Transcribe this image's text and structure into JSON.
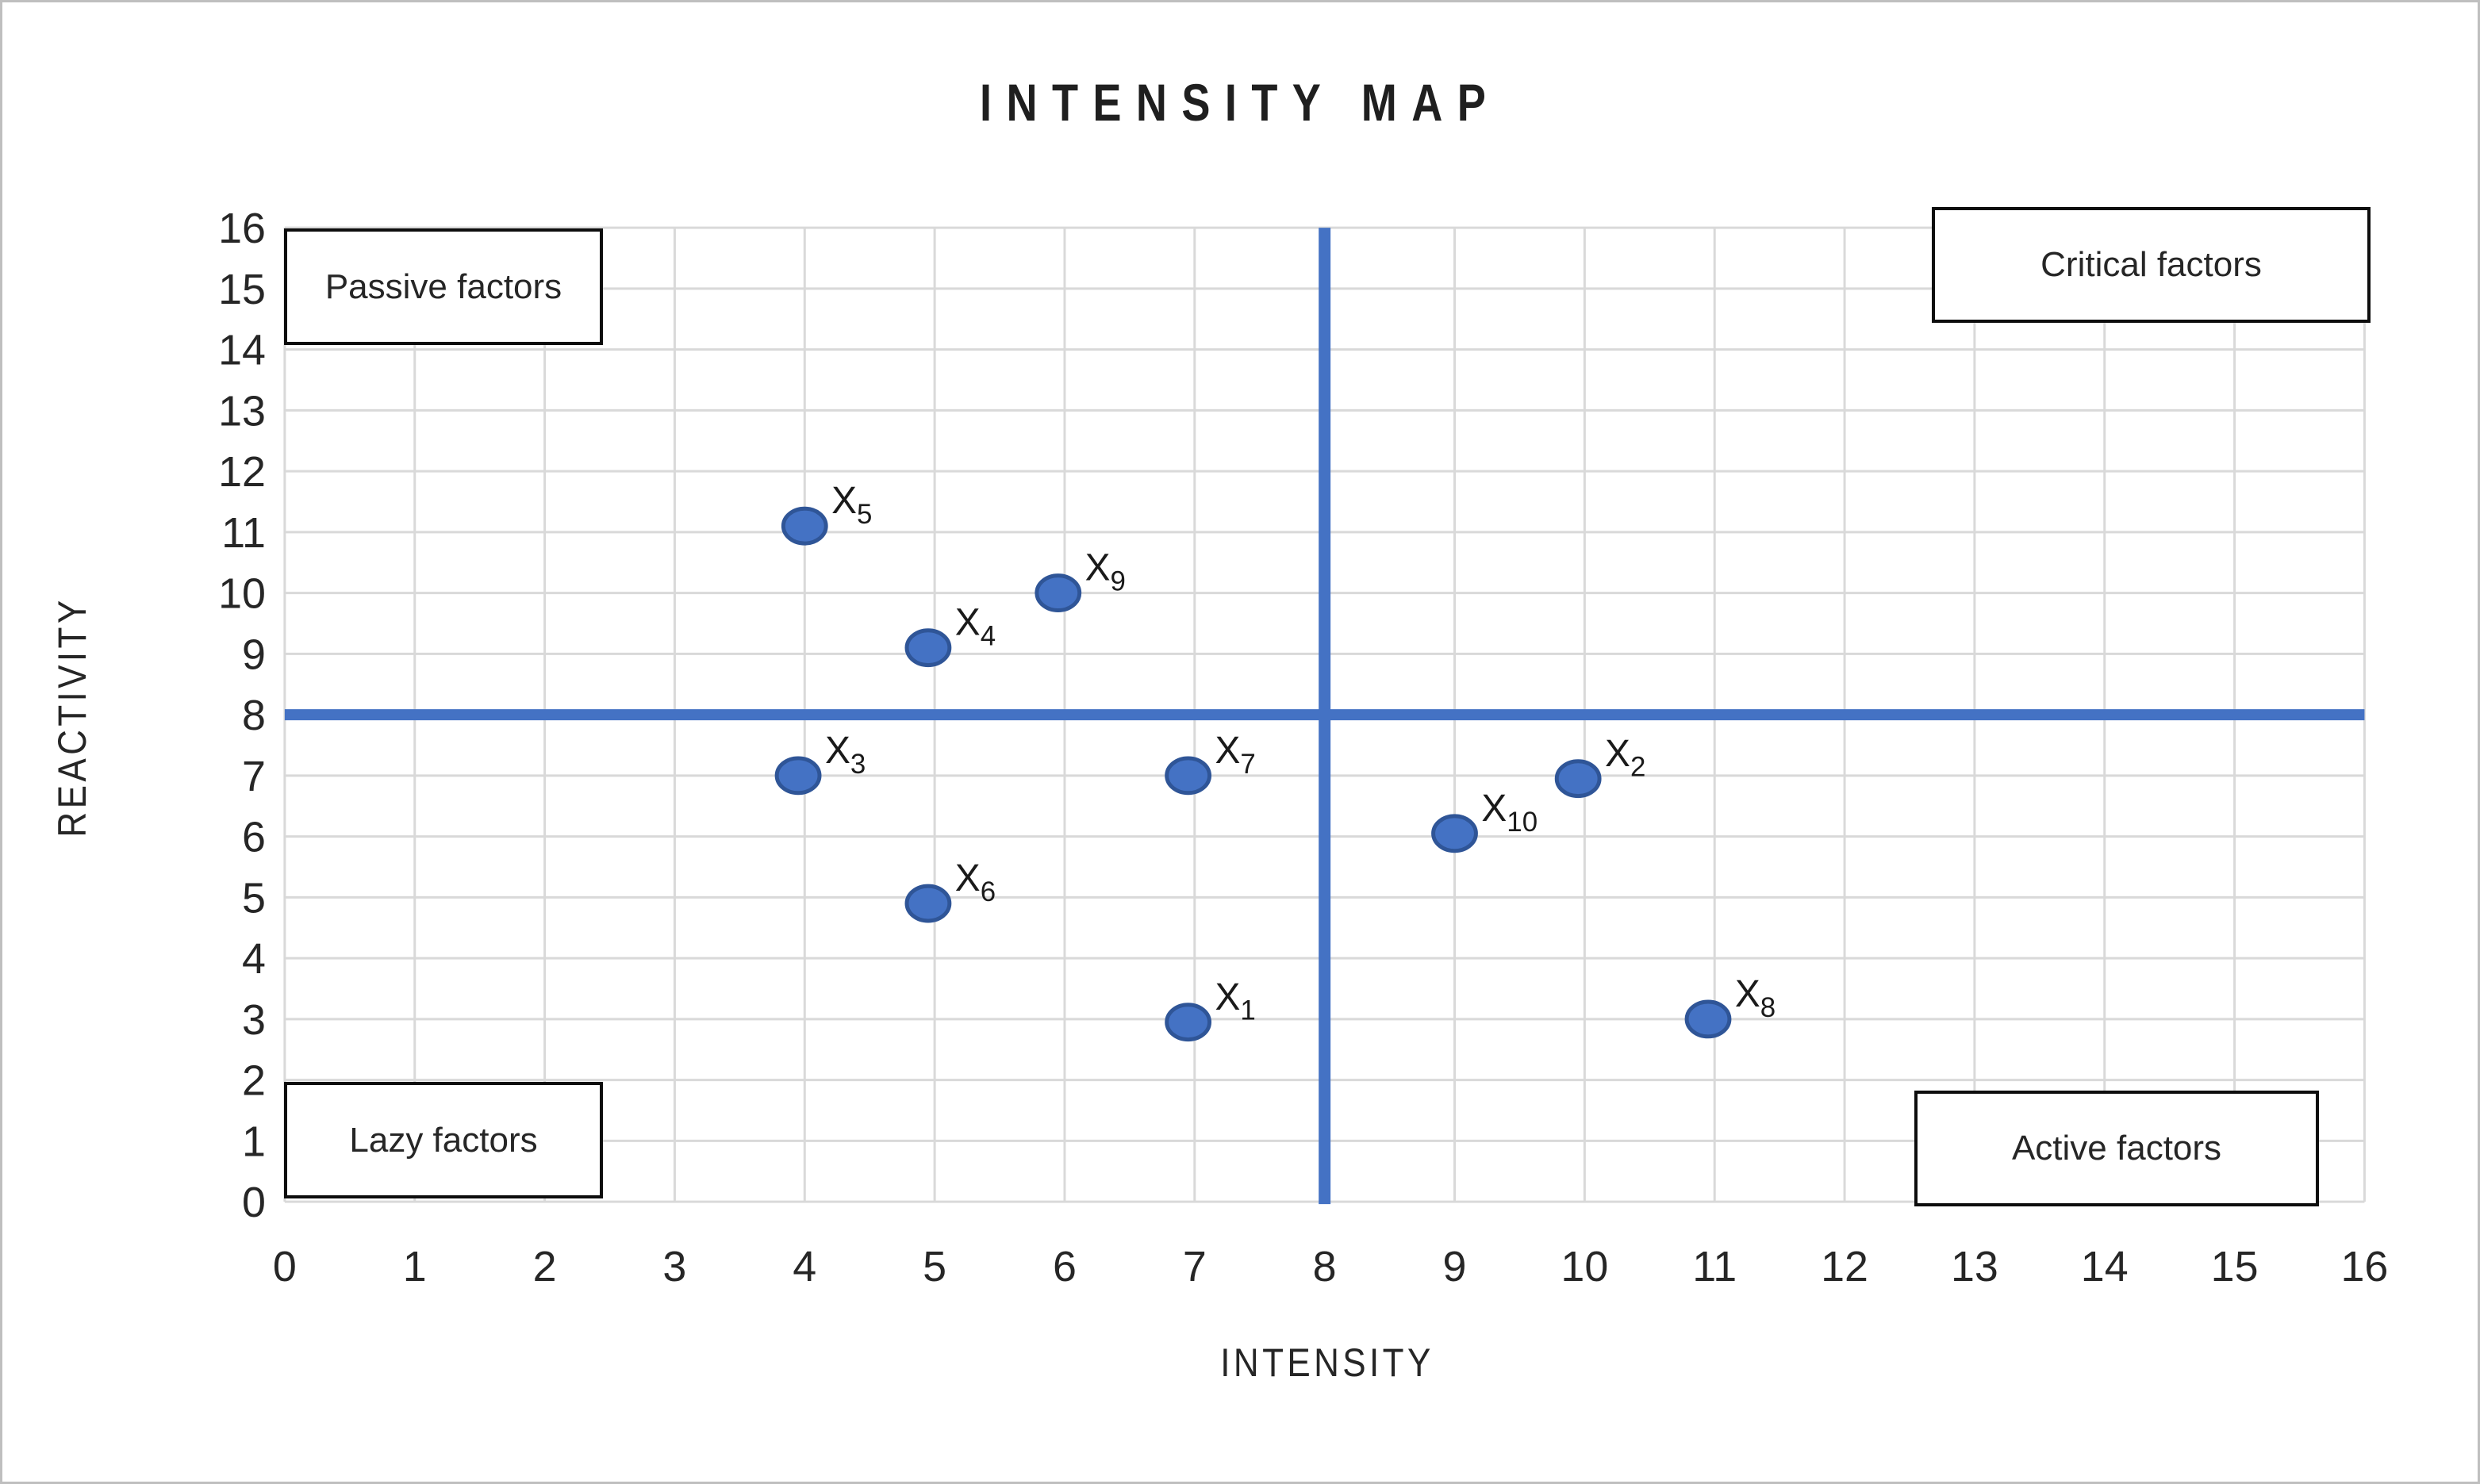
{
  "chart_data": {
    "type": "scatter",
    "title": "INTENSITY MAP",
    "xlabel": "INTENSITY",
    "ylabel": "REACTIVITY",
    "xlim": [
      0,
      16
    ],
    "ylim": [
      0,
      16
    ],
    "x_ticks": [
      0,
      1,
      2,
      3,
      4,
      5,
      6,
      7,
      8,
      9,
      10,
      11,
      12,
      13,
      14,
      15,
      16
    ],
    "y_ticks": [
      0,
      1,
      2,
      3,
      4,
      5,
      6,
      7,
      8,
      9,
      10,
      11,
      12,
      13,
      14,
      15,
      16
    ],
    "grid": true,
    "legend": "none",
    "quadrant_divider_x": 8,
    "quadrant_divider_y": 8,
    "quadrants": [
      {
        "position": "top-left",
        "label": "Passive factors"
      },
      {
        "position": "top-right",
        "label": "Critical factors"
      },
      {
        "position": "bottom-left",
        "label": "Lazy factors"
      },
      {
        "position": "bottom-right",
        "label": "Active factors"
      }
    ],
    "points": [
      {
        "name": "X1",
        "x": 6.95,
        "y": 2.95
      },
      {
        "name": "X2",
        "x": 9.95,
        "y": 6.95
      },
      {
        "name": "X3",
        "x": 3.95,
        "y": 7.0
      },
      {
        "name": "X4",
        "x": 4.95,
        "y": 9.1
      },
      {
        "name": "X5",
        "x": 4.0,
        "y": 11.1
      },
      {
        "name": "X6",
        "x": 4.95,
        "y": 4.9
      },
      {
        "name": "X7",
        "x": 6.95,
        "y": 7.0
      },
      {
        "name": "X8",
        "x": 10.95,
        "y": 3.0
      },
      {
        "name": "X9",
        "x": 5.95,
        "y": 10.0
      },
      {
        "name": "X10",
        "x": 9.0,
        "y": 6.05
      }
    ]
  },
  "colors": {
    "point_fill": "#4472C4",
    "point_border": "#2F5597",
    "quadrant_line": "#4472C4",
    "gridline": "#D9D9D9",
    "tick_text": "#262626",
    "label_text": "#1a1a1a",
    "box_border": "#0d0d0d",
    "canvas_border": "#BFBFBF"
  }
}
